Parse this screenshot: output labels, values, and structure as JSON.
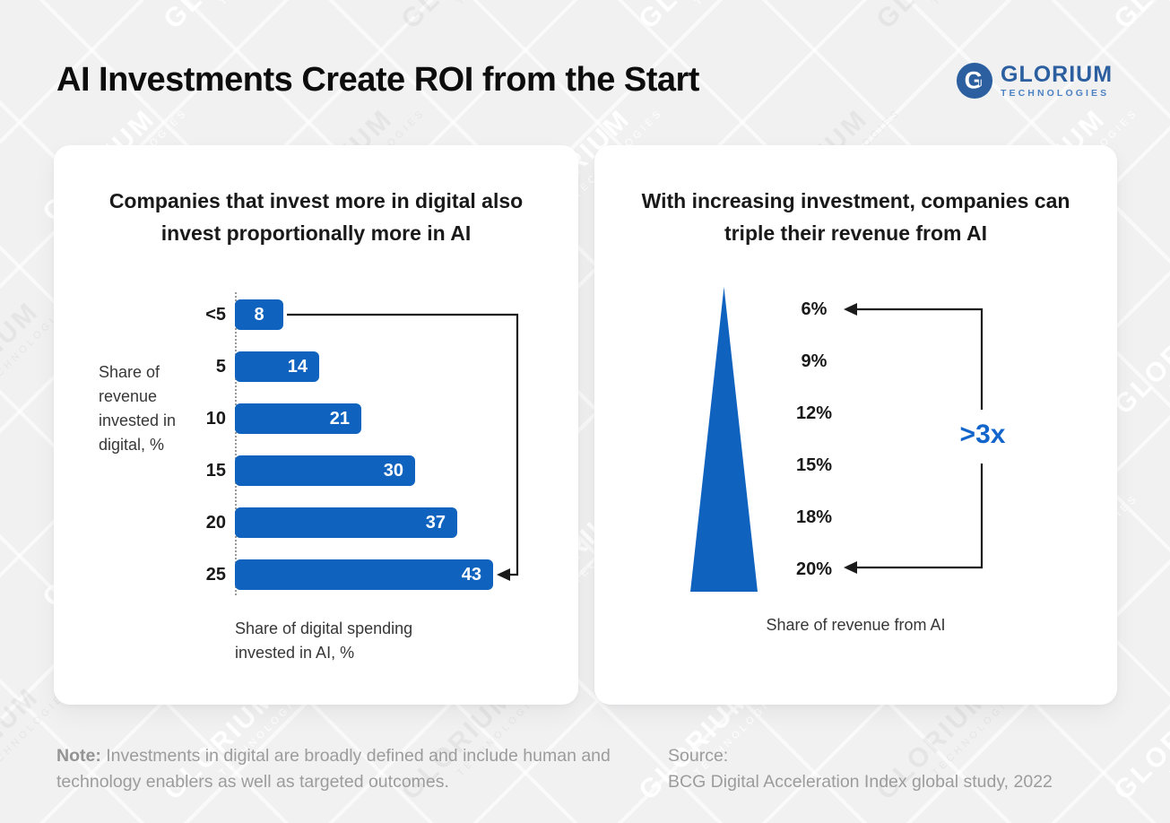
{
  "page": {
    "title": "AI Investments Create ROI from the Start"
  },
  "branding": {
    "logo_monogram": "G",
    "logo_monogram_inner": "T",
    "logo_text": "GLORIUM",
    "logo_subtext": "TECHNOLOGIES",
    "logo_color": "#2b5f9f",
    "logo_subtext_color": "#4d82c2",
    "watermark": {
      "line1": "GLORIUM",
      "line2": "TECHNOLOGIES"
    }
  },
  "colors": {
    "accent_blue": "#0f63bf",
    "multiplier_blue": "#1266cb",
    "line_dark": "#1b1b1b",
    "muted_gray": "#9c9c9c"
  },
  "left_panel": {
    "title": "Companies that invest more in digital also invest proportionally more in AI",
    "y_axis_label": "Share of revenue invested in digital, %",
    "x_axis_label": "Share of digital spending invested in AI, %"
  },
  "right_panel": {
    "title": "With increasing investment, companies can triple their revenue from AI",
    "multiplier_label": ">3x",
    "x_axis_label": "Share of revenue from AI"
  },
  "footer": {
    "note_label": "Note:",
    "note_text": " Investments in digital are broadly defined and include human and technology enablers as well as targeted outcomes.",
    "source_label": "Source:",
    "source_text": "BCG Digital Acceleration Index global study, 2022"
  },
  "chart_data": [
    {
      "type": "bar",
      "orientation": "horizontal",
      "title": "Companies that invest more in digital also invest proportionally more in AI",
      "categories": [
        "<5",
        "5",
        "10",
        "15",
        "20",
        "25"
      ],
      "values": [
        8,
        14,
        21,
        30,
        37,
        43
      ],
      "xlabel": "Share of digital spending invested in AI, %",
      "ylabel": "Share of revenue invested in digital, %",
      "xlim": [
        0,
        45
      ],
      "bar_color": "#0f63bf",
      "value_labels": "inside bars, white",
      "annotation": "bracket arrow connecting first bar (8) to last bar (43)"
    },
    {
      "type": "area",
      "shape": "triangle-funnel",
      "title": "With increasing investment, companies can triple their revenue from AI",
      "categories": [
        "6%",
        "9%",
        "12%",
        "15%",
        "18%",
        "20%"
      ],
      "values": [
        6,
        9,
        12,
        15,
        18,
        20
      ],
      "xlabel": "Share of revenue from AI",
      "fill_color": "#0f63bf",
      "annotation": ">3x bracket from 6% to 20%"
    }
  ]
}
